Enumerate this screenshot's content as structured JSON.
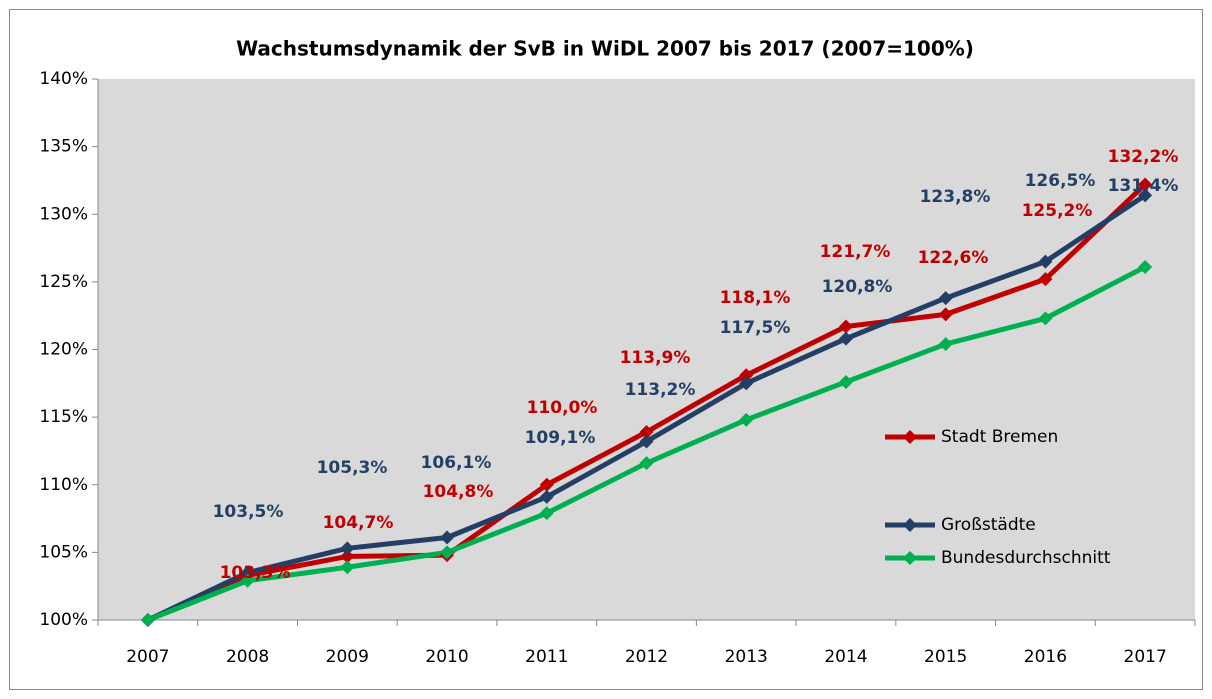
{
  "chart_data": {
    "type": "line",
    "title": "Wachstumsdynamik der SvB in WiDL 2007 bis 2017 (2007=100%)",
    "categories": [
      "2007",
      "2008",
      "2009",
      "2010",
      "2011",
      "2012",
      "2013",
      "2014",
      "2015",
      "2016",
      "2017"
    ],
    "series": [
      {
        "name": "Stadt Bremen",
        "color": "#c00000",
        "values": [
          100,
          103.3,
          104.7,
          104.8,
          110.0,
          113.9,
          118.1,
          121.7,
          122.6,
          125.2,
          132.2
        ],
        "value_labels": [
          null,
          "103,3%",
          "104,7%",
          "104,8%",
          "110,0%",
          "113,9%",
          "118,1%",
          "121,7%",
          "122,6%",
          "125,2%",
          "132,2%"
        ]
      },
      {
        "name": "Großstädte",
        "color": "#243f66",
        "values": [
          100,
          103.5,
          105.3,
          106.1,
          109.1,
          113.2,
          117.5,
          120.8,
          123.8,
          126.5,
          131.4
        ],
        "value_labels": [
          null,
          "103,5%",
          "105,3%",
          "106,1%",
          "109,1%",
          "113,2%",
          "117,5%",
          "120,8%",
          "123,8%",
          "126,5%",
          "131,4%"
        ]
      },
      {
        "name": "Bundesdurchschnitt",
        "color": "#00b050",
        "values": [
          100,
          102.9,
          103.9,
          105.0,
          107.9,
          111.6,
          114.8,
          117.6,
          120.4,
          122.3,
          126.1
        ]
      }
    ],
    "ylim": [
      100,
      140
    ],
    "yticks": [
      {
        "value": 100,
        "label": "100%"
      },
      {
        "value": 105,
        "label": "105%"
      },
      {
        "value": 110,
        "label": "110%"
      },
      {
        "value": 115,
        "label": "115%"
      },
      {
        "value": 120,
        "label": "120%"
      },
      {
        "value": 125,
        "label": "125%"
      },
      {
        "value": 130,
        "label": "130%"
      },
      {
        "value": 135,
        "label": "135%"
      },
      {
        "value": 140,
        "label": "140%"
      }
    ],
    "grid": false,
    "legend": "right"
  }
}
